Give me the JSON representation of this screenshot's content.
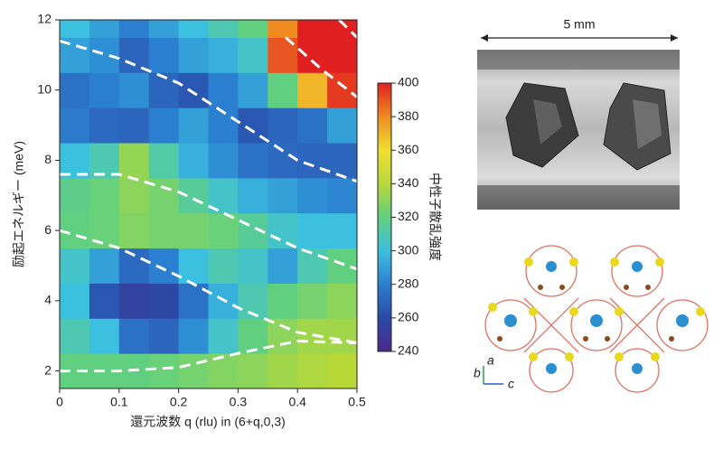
{
  "chart_data": {
    "type": "heatmap",
    "xlabel": "還元波数 q (rlu) in (6+q,0,3)",
    "ylabel": "励起エネルギー (meV)",
    "colorbar_label": "中性子散乱強度",
    "x": [
      0.025,
      0.075,
      0.125,
      0.175,
      0.225,
      0.275,
      0.325,
      0.375,
      0.425,
      0.475
    ],
    "y": [
      2,
      3,
      4,
      5,
      6,
      7,
      8,
      9,
      10,
      11,
      12
    ],
    "z": [
      [
        320,
        320,
        320,
        322,
        325,
        328,
        330,
        335,
        338,
        340
      ],
      [
        310,
        300,
        275,
        270,
        285,
        305,
        320,
        330,
        335,
        335
      ],
      [
        300,
        265,
        255,
        258,
        275,
        295,
        310,
        320,
        325,
        330
      ],
      [
        305,
        290,
        272,
        280,
        300,
        310,
        305,
        290,
        310,
        320
      ],
      [
        320,
        322,
        328,
        325,
        325,
        322,
        315,
        305,
        300,
        300
      ],
      [
        318,
        322,
        330,
        325,
        315,
        305,
        295,
        290,
        285,
        282
      ],
      [
        300,
        310,
        332,
        312,
        295,
        285,
        275,
        272,
        270,
        270
      ],
      [
        278,
        272,
        270,
        280,
        290,
        280,
        265,
        270,
        275,
        290
      ],
      [
        275,
        280,
        285,
        270,
        265,
        280,
        290,
        320,
        370,
        395
      ],
      [
        290,
        285,
        270,
        280,
        290,
        295,
        305,
        390,
        400,
        400
      ],
      [
        300,
        290,
        280,
        290,
        300,
        310,
        320,
        380,
        400,
        400
      ]
    ],
    "xlim": [
      0,
      0.5
    ],
    "xticks": [
      0,
      0.1,
      0.2,
      0.3,
      0.4,
      0.5
    ],
    "ylim": [
      1.5,
      12
    ],
    "yticks": [
      2,
      4,
      6,
      8,
      10,
      12
    ],
    "clim": [
      240,
      400
    ],
    "cticks": [
      240,
      260,
      280,
      300,
      320,
      340,
      360,
      380,
      400
    ],
    "colormap": [
      "#4b2a8c",
      "#2a4aa8",
      "#2b7fd0",
      "#3bc0e0",
      "#60d080",
      "#b8d838",
      "#f0e030",
      "#f08a20",
      "#e02020"
    ],
    "curves": [
      {
        "color": "#ffffff",
        "x": [
          0,
          0.1,
          0.2,
          0.3,
          0.4,
          0.5
        ],
        "y": [
          11.4,
          10.9,
          10.2,
          9.1,
          8.0,
          7.4
        ]
      },
      {
        "color": "#ffffff",
        "x": [
          0,
          0.1,
          0.2,
          0.3,
          0.4,
          0.5
        ],
        "y": [
          7.6,
          7.6,
          7.1,
          6.3,
          5.5,
          4.9
        ]
      },
      {
        "color": "#ffffff",
        "x": [
          0,
          0.1,
          0.2,
          0.3,
          0.4,
          0.5
        ],
        "y": [
          6.0,
          5.5,
          4.7,
          3.8,
          3.1,
          2.8
        ]
      },
      {
        "color": "#ffffff",
        "x": [
          0,
          0.1,
          0.2,
          0.3,
          0.4,
          0.5
        ],
        "y": [
          2.0,
          2.0,
          2.1,
          2.5,
          2.85,
          2.8
        ]
      },
      {
        "color": "#ffffff",
        "x": [
          0.38,
          0.44,
          0.5
        ],
        "y": [
          11.5,
          10.6,
          9.8
        ]
      },
      {
        "color": "#ffffff",
        "x": [
          0.47,
          0.5
        ],
        "y": [
          12.0,
          11.5
        ]
      }
    ]
  },
  "photo": {
    "scale_label": "5 mm"
  },
  "crystal": {
    "axes": [
      "a",
      "b",
      "c"
    ]
  }
}
